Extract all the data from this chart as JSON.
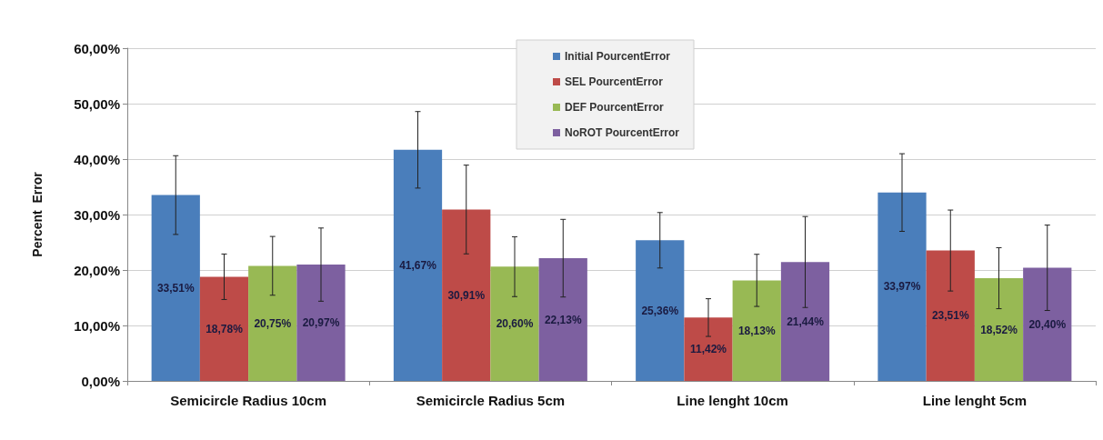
{
  "chart_data": {
    "type": "bar",
    "ylabel": "Percent  Error",
    "categories": [
      "Semicircle Radius 10cm",
      "Semicircle Radius 5cm",
      "Line lenght 10cm",
      "Line lenght 5cm"
    ],
    "series": [
      {
        "name": "Initial PourcentError",
        "color": "#4a7ebb",
        "values": [
          33.51,
          41.67,
          25.36,
          33.97
        ],
        "errors": [
          7.1,
          6.9,
          5.0,
          7.0
        ],
        "value_labels": [
          "33,51%",
          "41,67%",
          "25,36%",
          "33,97%"
        ]
      },
      {
        "name": "SEL PourcentError",
        "color": "#be4b48",
        "values": [
          18.78,
          30.91,
          11.42,
          23.51
        ],
        "errors": [
          4.1,
          8.0,
          3.4,
          7.3
        ],
        "value_labels": [
          "18,78%",
          "30,91%",
          "11,42%",
          "23,51%"
        ]
      },
      {
        "name": "DEF PourcentError",
        "color": "#98b954",
        "values": [
          20.75,
          20.6,
          18.13,
          18.52
        ],
        "errors": [
          5.3,
          5.4,
          4.7,
          5.5
        ],
        "value_labels": [
          "20,75%",
          "20,60%",
          "18,13%",
          "18,52%"
        ]
      },
      {
        "name": "NoROT PourcentError",
        "color": "#7d60a0",
        "values": [
          20.97,
          22.13,
          21.44,
          20.4
        ],
        "errors": [
          6.6,
          7.0,
          8.2,
          7.7
        ],
        "value_labels": [
          "20,97%",
          "22,13%",
          "21,44%",
          "20,40%"
        ]
      }
    ],
    "ylim": [
      0,
      60
    ],
    "yticks": [
      {
        "value": 0,
        "label": "0,00%"
      },
      {
        "value": 10,
        "label": "10,00%"
      },
      {
        "value": 20,
        "label": "20,00%"
      },
      {
        "value": 30,
        "label": "30,00%"
      },
      {
        "value": 40,
        "label": "40,00%"
      },
      {
        "value": 50,
        "label": "50,00%"
      },
      {
        "value": 60,
        "label": "60,00%"
      }
    ],
    "grid": "y",
    "legend": "top"
  }
}
